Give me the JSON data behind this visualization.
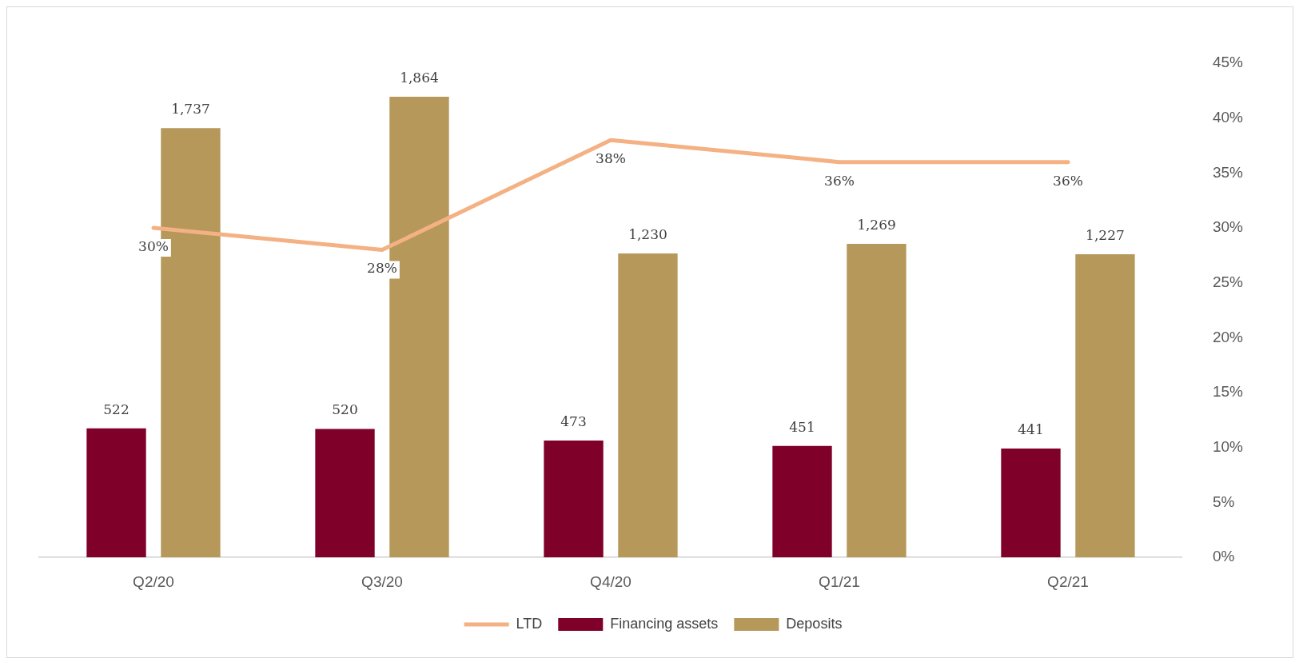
{
  "chart_data": {
    "type": "bar",
    "categories": [
      "Q2/20",
      "Q3/20",
      "Q4/20",
      "Q1/21",
      "Q2/21"
    ],
    "series": [
      {
        "name": "Financing assets",
        "color": "#7f0029",
        "values": [
          522,
          520,
          473,
          451,
          441
        ],
        "value_labels": [
          "522",
          "520",
          "473",
          "451",
          "441"
        ]
      },
      {
        "name": "Deposits",
        "color": "#b5985a",
        "values": [
          1737,
          1864,
          1230,
          1269,
          1227
        ],
        "value_labels": [
          "1,737",
          "1,864",
          "1,230",
          "1,269",
          "1,227"
        ]
      },
      {
        "name": "LTD",
        "type": "line",
        "axis": "y2",
        "color": "#f4b183",
        "values": [
          30,
          28,
          38,
          36,
          36
        ],
        "value_labels": [
          "30%",
          "28%",
          "38%",
          "36%",
          "36%"
        ]
      }
    ],
    "y2lim": [
      0,
      45
    ],
    "y2ticks": [
      {
        "value": 0,
        "label": "0%"
      },
      {
        "value": 5,
        "label": "5%"
      },
      {
        "value": 10,
        "label": "10%"
      },
      {
        "value": 15,
        "label": "15%"
      },
      {
        "value": 20,
        "label": "20%"
      },
      {
        "value": 25,
        "label": "25%"
      },
      {
        "value": 30,
        "label": "30%"
      },
      {
        "value": 35,
        "label": "35%"
      },
      {
        "value": 40,
        "label": "40%"
      },
      {
        "value": 45,
        "label": "45%"
      }
    ],
    "legend": "bottom",
    "grid": false,
    "marker": "none"
  }
}
